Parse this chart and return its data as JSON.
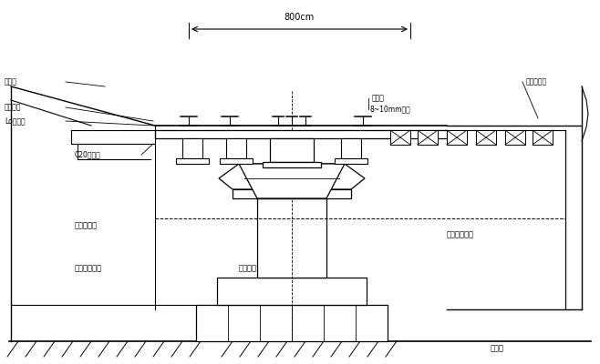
{
  "bg_color": "#ffffff",
  "line_color": "#000000",
  "figsize": [
    6.58,
    4.0
  ],
  "dpi": 100,
  "labels": {
    "dim_800": "800cm",
    "label_top_left": "工梁架",
    "label_rail1": "二工字钢",
    "label_rail2": "Lo工字梁",
    "label_concrete": "C20混凝土",
    "label_left1": "加密段石青",
    "label_left2": "简形支工墙台",
    "label_center": "既有桥墩",
    "label_right": "荐夯间隔填青",
    "label_plate1": "8~10mm钢板",
    "label_plate2": "硬亦木垫板",
    "label_rail3": "顶柱支",
    "label_bottom": "工述方"
  }
}
